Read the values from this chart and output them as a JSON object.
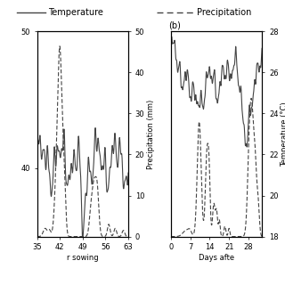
{
  "title_legend_temp": "Temperature",
  "title_legend_precip": "Precipitation",
  "panel_b_label": "(b)",
  "panel_a": {
    "x_ticks": [
      35,
      42,
      49,
      56,
      63
    ],
    "xlim": [
      35,
      63
    ],
    "temp_ylim": [
      35,
      50
    ],
    "temp_yticks": [
      40,
      50
    ],
    "precip_ylim": [
      0,
      50
    ],
    "precip_yticks": [
      0,
      10,
      20,
      30,
      40,
      50
    ],
    "x_label": "r sowing"
  },
  "panel_b": {
    "x_ticks": [
      0,
      7,
      14,
      21,
      28
    ],
    "xlim": [
      0,
      33
    ],
    "temp_ylim": [
      18,
      28
    ],
    "temp_yticks": [
      18,
      20,
      22,
      24,
      26,
      28
    ],
    "precip_ylim": [
      0,
      50
    ],
    "x_label": "Days afte"
  },
  "line_color": "#444444",
  "background": "#ffffff",
  "fontsize": 6,
  "legend_fontsize": 7
}
